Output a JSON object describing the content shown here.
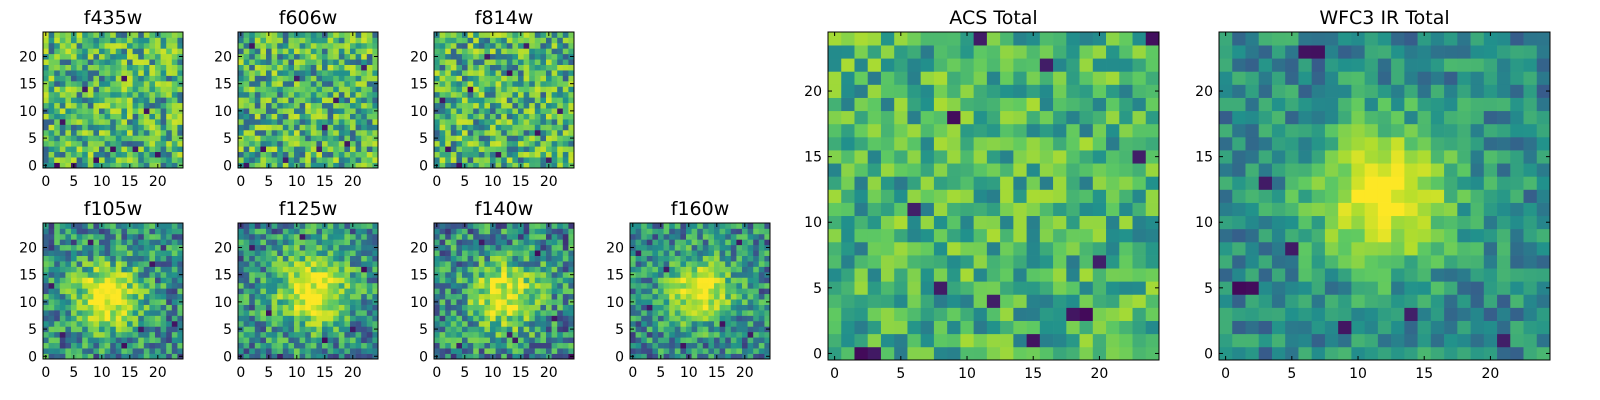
{
  "colormap": [
    "#440154",
    "#3b528b",
    "#21918c",
    "#5ec962",
    "#b5de2b",
    "#fde725"
  ],
  "chart_data": [
    {
      "type": "heatmap",
      "title": "f435w",
      "grid": [
        25,
        25
      ],
      "xticks": [
        "0",
        "5",
        "10",
        "15",
        "20"
      ],
      "yticks": [
        "0",
        "5",
        "10",
        "15",
        "20"
      ],
      "xlim": [
        0,
        25
      ],
      "ylim": [
        0,
        25
      ],
      "seed": 11,
      "noise": 0.42,
      "blob": null,
      "darks": [
        [
          2,
          0
        ],
        [
          5,
          0
        ],
        [
          9,
          1
        ],
        [
          12,
          3
        ],
        [
          14,
          16
        ],
        [
          20,
          2
        ],
        [
          16,
          3
        ],
        [
          3,
          8
        ],
        [
          7,
          14
        ],
        [
          18,
          10
        ]
      ]
    },
    {
      "type": "heatmap",
      "title": "f606w",
      "grid": [
        25,
        25
      ],
      "xticks": [
        "0",
        "5",
        "10",
        "15",
        "20"
      ],
      "yticks": [
        "0",
        "5",
        "10",
        "15",
        "20"
      ],
      "xlim": [
        0,
        25
      ],
      "ylim": [
        0,
        25
      ],
      "seed": 23,
      "noise": 0.42,
      "blob": null,
      "darks": [
        [
          1,
          0
        ],
        [
          4,
          3
        ],
        [
          10,
          16
        ],
        [
          15,
          7
        ],
        [
          19,
          4
        ],
        [
          22,
          18
        ],
        [
          8,
          1
        ],
        [
          14,
          3
        ],
        [
          2,
          22
        ],
        [
          17,
          12
        ]
      ]
    },
    {
      "type": "heatmap",
      "title": "f814w",
      "grid": [
        25,
        25
      ],
      "xticks": [
        "0",
        "5",
        "10",
        "15",
        "20"
      ],
      "yticks": [
        "0",
        "5",
        "10",
        "15",
        "20"
      ],
      "xlim": [
        0,
        25
      ],
      "ylim": [
        0,
        25
      ],
      "seed": 37,
      "noise": 0.42,
      "blob": null,
      "darks": [
        [
          2,
          3
        ],
        [
          6,
          14
        ],
        [
          11,
          2
        ],
        [
          18,
          6
        ],
        [
          22,
          10
        ],
        [
          9,
          20
        ],
        [
          13,
          17
        ],
        [
          4,
          0
        ],
        [
          20,
          1
        ],
        [
          16,
          22
        ],
        [
          1,
          12
        ]
      ]
    },
    {
      "type": "heatmap",
      "title": "f105w",
      "grid": [
        25,
        25
      ],
      "xticks": [
        "0",
        "5",
        "10",
        "15",
        "20"
      ],
      "yticks": [
        "0",
        "5",
        "10",
        "15",
        "20"
      ],
      "xlim": [
        0,
        25
      ],
      "ylim": [
        0,
        25
      ],
      "seed": 41,
      "noise": 0.36,
      "blob": {
        "x": 11,
        "y": 11,
        "s": 4.2,
        "a": 0.62
      },
      "darks": [
        [
          3,
          4
        ],
        [
          8,
          21
        ],
        [
          14,
          2
        ],
        [
          17,
          5
        ],
        [
          23,
          6
        ],
        [
          19,
          17
        ],
        [
          1,
          13
        ]
      ]
    },
    {
      "type": "heatmap",
      "title": "f125w",
      "grid": [
        25,
        25
      ],
      "xticks": [
        "0",
        "5",
        "10",
        "15",
        "20"
      ],
      "yticks": [
        "0",
        "5",
        "10",
        "15",
        "20"
      ],
      "xlim": [
        0,
        25
      ],
      "ylim": [
        0,
        25
      ],
      "seed": 53,
      "noise": 0.36,
      "blob": {
        "x": 13,
        "y": 12,
        "s": 4.8,
        "a": 0.58
      },
      "darks": [
        [
          5,
          8
        ],
        [
          15,
          3
        ],
        [
          20,
          5
        ],
        [
          7,
          0
        ],
        [
          22,
          16
        ],
        [
          2,
          20
        ],
        [
          11,
          22
        ]
      ]
    },
    {
      "type": "heatmap",
      "title": "f140w",
      "grid": [
        25,
        25
      ],
      "xticks": [
        "0",
        "5",
        "10",
        "15",
        "20"
      ],
      "yticks": [
        "0",
        "5",
        "10",
        "15",
        "20"
      ],
      "xlim": [
        0,
        25
      ],
      "ylim": [
        0,
        25
      ],
      "seed": 67,
      "noise": 0.38,
      "blob": {
        "x": 12,
        "y": 11,
        "s": 4.4,
        "a": 0.55
      },
      "darks": [
        [
          13,
          4
        ],
        [
          14,
          3
        ],
        [
          8,
          21
        ],
        [
          21,
          7
        ],
        [
          24,
          0
        ],
        [
          4,
          2
        ],
        [
          18,
          19
        ]
      ]
    },
    {
      "type": "heatmap",
      "title": "f160w",
      "grid": [
        25,
        25
      ],
      "xticks": [
        "0",
        "5",
        "10",
        "15",
        "20"
      ],
      "yticks": [
        "0",
        "5",
        "10",
        "15",
        "20"
      ],
      "xlim": [
        0,
        25
      ],
      "ylim": [
        0,
        25
      ],
      "seed": 79,
      "noise": 0.34,
      "blob": {
        "x": 12,
        "y": 12,
        "s": 4.0,
        "a": 0.6
      },
      "darks": [
        [
          3,
          9
        ],
        [
          9,
          2
        ],
        [
          16,
          6
        ],
        [
          21,
          4
        ],
        [
          6,
          16
        ],
        [
          19,
          21
        ],
        [
          1,
          19
        ]
      ]
    },
    {
      "type": "heatmap",
      "title": "ACS Total",
      "grid": [
        25,
        25
      ],
      "xticks": [
        "0",
        "5",
        "10",
        "15",
        "20"
      ],
      "yticks": [
        "0",
        "5",
        "10",
        "15",
        "20"
      ],
      "xlim": [
        0,
        25
      ],
      "ylim": [
        0,
        25
      ],
      "seed": 91,
      "noise": 0.3,
      "blob": null,
      "darks": [
        [
          3,
          0
        ],
        [
          2,
          0
        ],
        [
          6,
          11
        ],
        [
          18,
          3
        ],
        [
          19,
          3
        ],
        [
          8,
          5
        ],
        [
          16,
          22
        ],
        [
          24,
          24
        ],
        [
          12,
          4
        ],
        [
          15,
          1
        ],
        [
          20,
          7
        ],
        [
          11,
          24
        ],
        [
          9,
          18
        ],
        [
          23,
          15
        ]
      ]
    },
    {
      "type": "heatmap",
      "title": "WFC3 IR Total",
      "grid": [
        25,
        25
      ],
      "xticks": [
        "0",
        "5",
        "10",
        "15",
        "20"
      ],
      "yticks": [
        "0",
        "5",
        "10",
        "15",
        "20"
      ],
      "xlim": [
        0,
        25
      ],
      "ylim": [
        0,
        25
      ],
      "seed": 103,
      "noise": 0.22,
      "blob": {
        "x": 12,
        "y": 12,
        "s": 3.6,
        "a": 0.62
      },
      "darks": [
        [
          1,
          5
        ],
        [
          2,
          5
        ],
        [
          6,
          23
        ],
        [
          7,
          23
        ],
        [
          9,
          2
        ],
        [
          14,
          3
        ],
        [
          5,
          8
        ],
        [
          21,
          1
        ],
        [
          3,
          13
        ]
      ]
    }
  ]
}
